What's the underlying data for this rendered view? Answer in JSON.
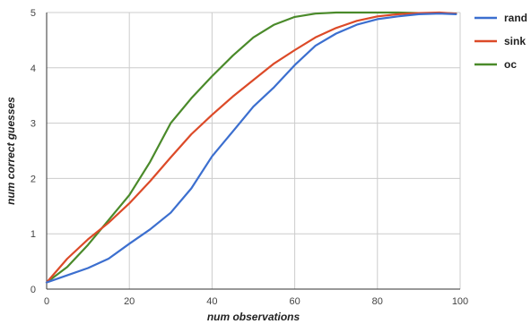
{
  "chart_data": {
    "type": "line",
    "title": "",
    "xlabel": "num observations",
    "ylabel": "num correct guesses",
    "xlim": [
      0,
      100
    ],
    "ylim": [
      0,
      5
    ],
    "x_ticks": [
      "0",
      "20",
      "40",
      "60",
      "80",
      "100"
    ],
    "y_ticks": [
      "0",
      "1",
      "2",
      "3",
      "4",
      "5"
    ],
    "grid": true,
    "legend_position": "top-right",
    "x": [
      0,
      5,
      10,
      15,
      20,
      25,
      30,
      35,
      40,
      45,
      50,
      55,
      60,
      65,
      70,
      75,
      80,
      85,
      90,
      95,
      99
    ],
    "series": [
      {
        "name": "rand",
        "color": "#3c6fcf",
        "values": [
          0.12,
          0.25,
          0.38,
          0.55,
          0.82,
          1.08,
          1.38,
          1.82,
          2.4,
          2.85,
          3.3,
          3.65,
          4.05,
          4.4,
          4.62,
          4.78,
          4.88,
          4.93,
          4.97,
          4.98,
          4.97
        ]
      },
      {
        "name": "sink",
        "color": "#dc4a28",
        "values": [
          0.12,
          0.55,
          0.9,
          1.2,
          1.55,
          1.95,
          2.38,
          2.8,
          3.15,
          3.48,
          3.78,
          4.08,
          4.32,
          4.55,
          4.72,
          4.85,
          4.93,
          4.97,
          4.99,
          5.0,
          4.98
        ]
      },
      {
        "name": "oc",
        "color": "#4a8a2a",
        "values": [
          0.12,
          0.4,
          0.8,
          1.25,
          1.7,
          2.3,
          3.0,
          3.45,
          3.85,
          4.22,
          4.55,
          4.78,
          4.92,
          4.98,
          5.0,
          5.0,
          5.0,
          5.0,
          4.99,
          4.99,
          4.98
        ]
      }
    ]
  }
}
